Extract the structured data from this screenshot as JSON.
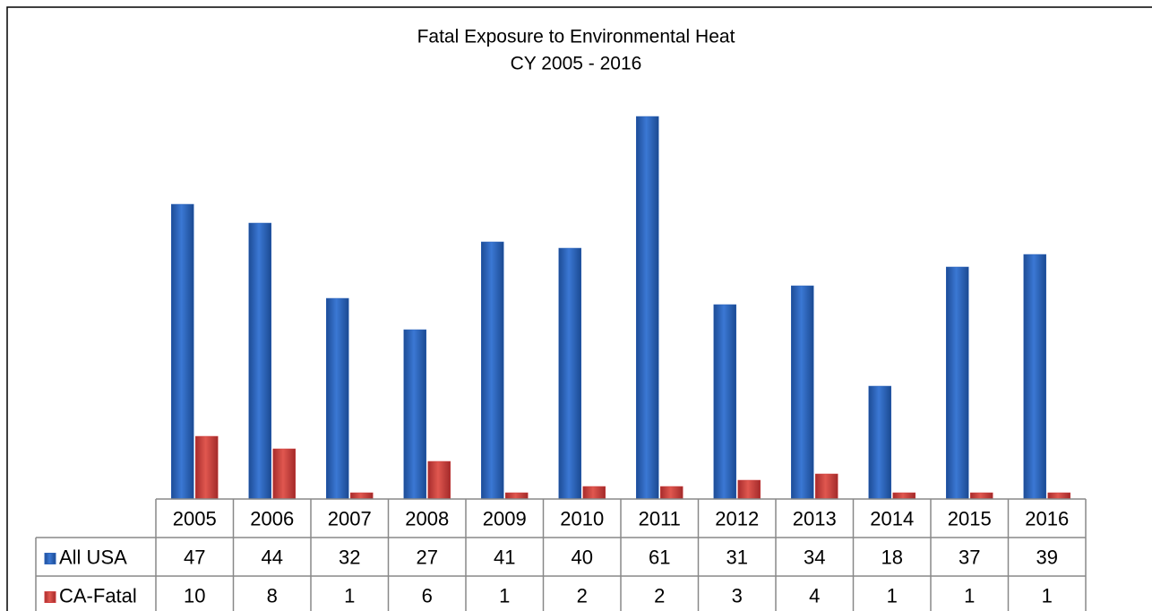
{
  "chart_data": {
    "type": "bar",
    "title": "Fatal Exposure to Environmental Heat",
    "subtitle": "CY 2005 - 2016",
    "categories": [
      "2005",
      "2006",
      "2007",
      "2008",
      "2009",
      "2010",
      "2011",
      "2012",
      "2013",
      "2014",
      "2015",
      "2016"
    ],
    "series": [
      {
        "name": "All USA",
        "color": "#2f64b9",
        "values": [
          47,
          44,
          32,
          27,
          41,
          40,
          61,
          31,
          34,
          18,
          37,
          39
        ]
      },
      {
        "name": "CA-Fatal",
        "color": "#cf3f3f",
        "values": [
          10,
          8,
          1,
          6,
          1,
          2,
          2,
          3,
          4,
          1,
          1,
          1
        ]
      }
    ]
  }
}
